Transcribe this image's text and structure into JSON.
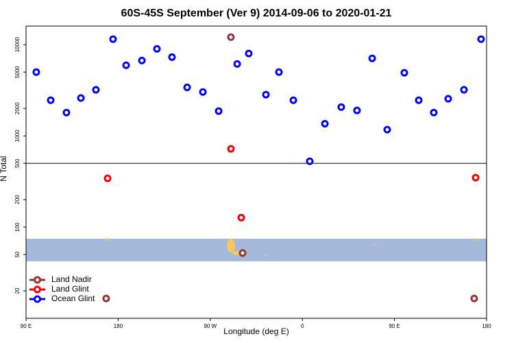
{
  "chart_data": {
    "type": "scatter",
    "title": "60S-45S September (Ver 9)   2014-09-06 to 2020-01-21",
    "x_label": "Longitude (deg E)",
    "y_label": "N Total",
    "log_y": true,
    "reference_line": 500,
    "legend": "bottom-left",
    "xlim": [
      90,
      540
    ],
    "xticks": [
      {
        "value": 90,
        "label": "90 E"
      },
      {
        "value": 180,
        "label": "180"
      },
      {
        "value": 270,
        "label": "90 W"
      },
      {
        "value": 360,
        "label": "0"
      },
      {
        "value": 450,
        "label": "90 E"
      },
      {
        "value": 540,
        "label": "180"
      }
    ],
    "ylim": [
      10,
      16000
    ],
    "yticks": [
      20,
      50,
      100,
      200,
      500,
      1000,
      2000,
      5000,
      10000
    ],
    "series": [
      {
        "name": "Land Nadir",
        "color": "#993333",
        "x": [
          290.2,
          301.6,
          168.3,
          527.9
        ],
        "values": [
          12100,
          52,
          16.5,
          16.5
        ]
      },
      {
        "name": "Land Glint",
        "color": "#ee0000",
        "x": [
          169.7,
          290.2,
          300.3,
          529.3
        ],
        "values": [
          342,
          720,
          127,
          348
        ]
      },
      {
        "name": "Ocean Glint",
        "color": "#0000ee",
        "x": [
          100,
          114.1,
          129.5,
          143.6,
          158.3,
          175,
          187.8,
          203.2,
          217.9,
          232.6,
          247.4,
          262.8,
          278.2,
          296.3,
          307.6,
          324.4,
          337.1,
          351.2,
          367.2,
          382,
          398,
          413.4,
          428.2,
          442.9,
          459.6,
          473.7,
          488.4,
          502.5,
          517.9,
          534.6
        ],
        "values": [
          5000,
          2460,
          1800,
          2600,
          3200,
          11500,
          5950,
          6700,
          9000,
          7300,
          3400,
          3030,
          1870,
          6150,
          8000,
          2830,
          5000,
          2460,
          527,
          1360,
          2070,
          1900,
          7070,
          1170,
          4920,
          2460,
          1800,
          2550,
          3200,
          11500
        ]
      }
    ]
  }
}
